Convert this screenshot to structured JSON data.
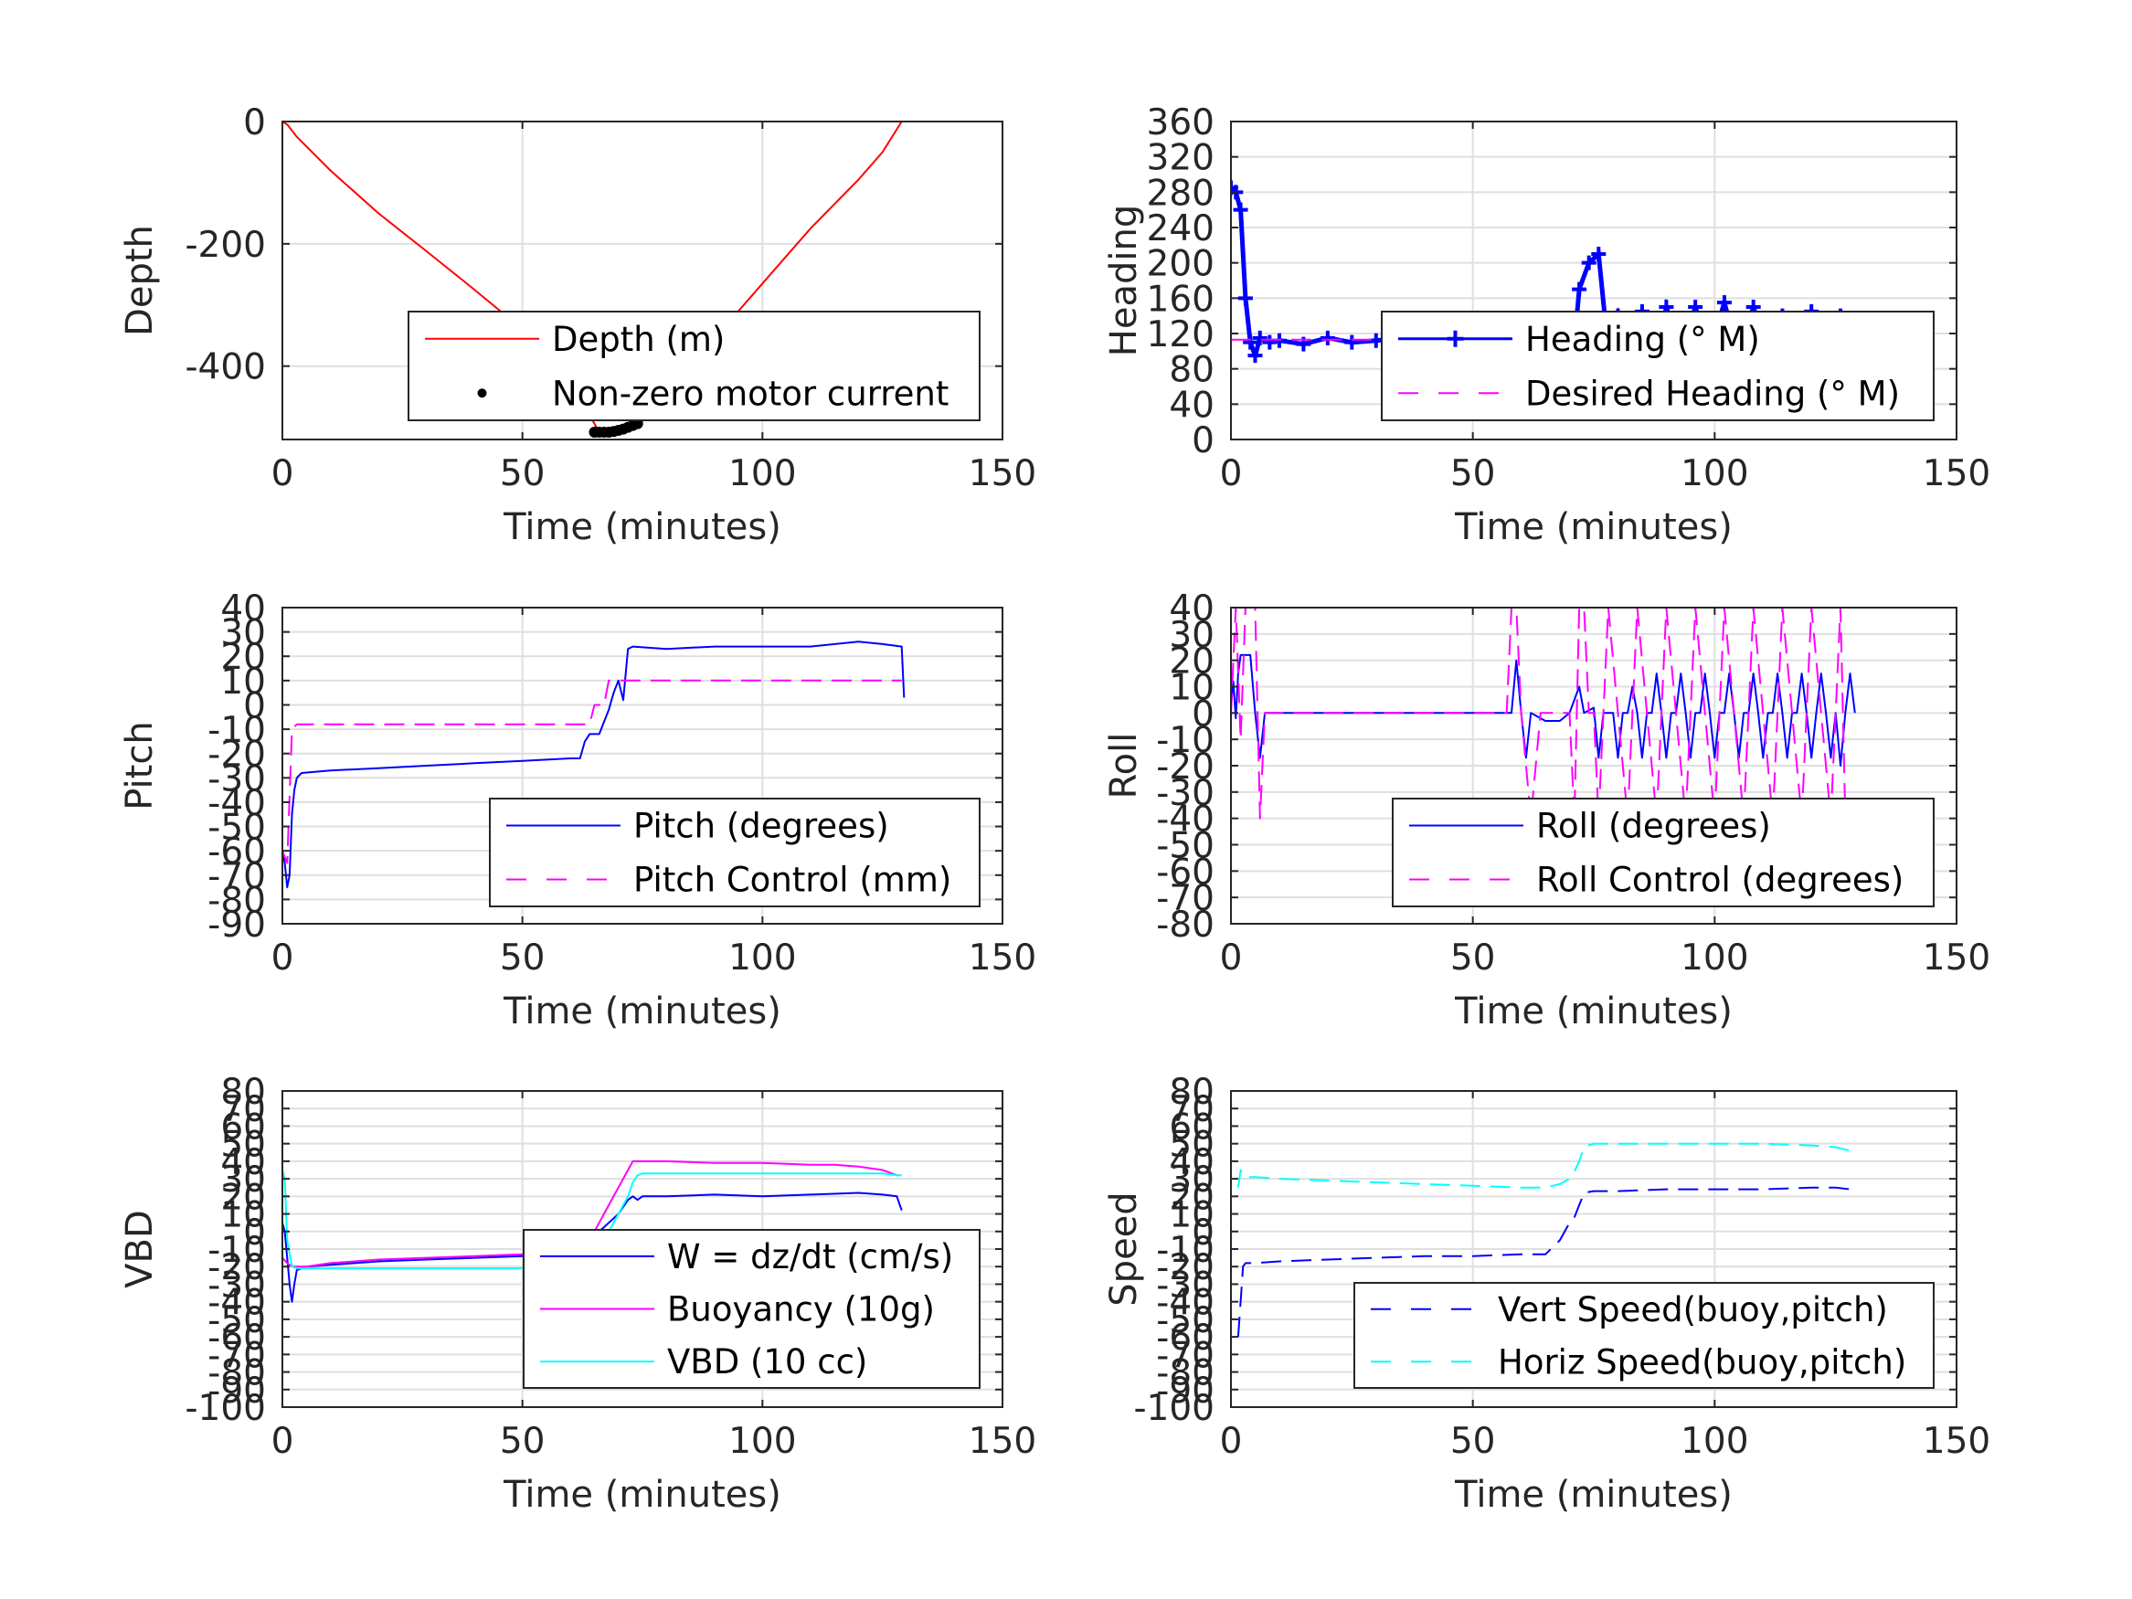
{
  "chart_data": [
    {
      "type": "line",
      "xlabel": "Time (minutes)",
      "ylabel": "Depth",
      "xlim": [
        0,
        150
      ],
      "ylim": [
        -520,
        0
      ],
      "xticks": [
        0,
        50,
        100,
        150
      ],
      "yticks": [
        0,
        -200,
        -400
      ],
      "ytick_labels": [
        "0",
        "-200",
        "-400"
      ],
      "grid": true,
      "legend": "bottom-right",
      "series": [
        {
          "name": "Depth (m)",
          "color": "#ff0000",
          "style": "solid",
          "x": [
            0,
            1,
            3,
            10,
            20,
            30,
            40,
            50,
            60,
            62,
            64,
            66,
            70,
            72,
            80,
            90,
            100,
            110,
            120,
            125,
            129
          ],
          "y": [
            0,
            -5,
            -25,
            -80,
            -150,
            -212,
            -275,
            -340,
            -410,
            -445,
            -480,
            -508,
            -508,
            -495,
            -435,
            -355,
            -265,
            -175,
            -95,
            -50,
            0
          ]
        },
        {
          "name": "Non-zero motor current",
          "color": "#000000",
          "style": "dots",
          "x": [
            65,
            66,
            67,
            68,
            69,
            70,
            71,
            72,
            73,
            74
          ],
          "y": [
            -508,
            -508,
            -508,
            -508,
            -507,
            -505,
            -503,
            -500,
            -497,
            -494
          ]
        }
      ]
    },
    {
      "type": "line",
      "xlabel": "Time (minutes)",
      "ylabel": "Heading",
      "xlim": [
        0,
        150
      ],
      "ylim": [
        0,
        360
      ],
      "xticks": [
        0,
        50,
        100,
        150
      ],
      "yticks": [
        0,
        40,
        80,
        120,
        160,
        200,
        240,
        280,
        320,
        360
      ],
      "grid": true,
      "legend": "bottom-right",
      "series": [
        {
          "name": "Heading (° M)",
          "color": "#0000ff",
          "style": "plus",
          "x": [
            0,
            1,
            2,
            3,
            4,
            5,
            6,
            8,
            10,
            15,
            20,
            25,
            30,
            35,
            40,
            45,
            50,
            55,
            58,
            60,
            62,
            65,
            68,
            70,
            72,
            74,
            76,
            78,
            80,
            82,
            85,
            88,
            90,
            93,
            96,
            99,
            102,
            105,
            108,
            111,
            114,
            117,
            120,
            123,
            126,
            129
          ],
          "y": [
            285,
            280,
            260,
            160,
            110,
            95,
            115,
            110,
            112,
            108,
            115,
            110,
            112,
            115,
            110,
            113,
            112,
            118,
            120,
            95,
            130,
            100,
            125,
            45,
            170,
            200,
            210,
            100,
            140,
            95,
            145,
            95,
            150,
            100,
            150,
            100,
            155,
            95,
            150,
            100,
            140,
            100,
            145,
            95,
            140,
            125
          ]
        },
        {
          "name": "Desired Heading (° M)",
          "color": "#ff00ff",
          "style": "dashed",
          "x": [
            0,
            130
          ],
          "y": [
            113,
            113
          ]
        }
      ]
    },
    {
      "type": "line",
      "xlabel": "Time (minutes)",
      "ylabel": "Pitch",
      "xlim": [
        0,
        150
      ],
      "ylim": [
        -90,
        40
      ],
      "xticks": [
        0,
        50,
        100,
        150
      ],
      "yticks": [
        -90,
        -80,
        -70,
        -60,
        -50,
        -40,
        -30,
        -20,
        -10,
        0,
        10,
        20,
        30,
        40
      ],
      "grid": true,
      "legend": "bottom-right",
      "series": [
        {
          "name": "Pitch (degrees)",
          "color": "#0000ff",
          "style": "solid",
          "x": [
            0,
            0.5,
            1,
            1.5,
            2,
            2.5,
            3,
            4,
            10,
            20,
            30,
            40,
            50,
            60,
            62,
            63,
            64,
            66,
            68,
            69,
            70,
            71,
            72,
            73,
            80,
            90,
            100,
            110,
            120,
            125,
            129,
            129.5
          ],
          "y": [
            -60,
            -65,
            -75,
            -70,
            -45,
            -35,
            -30,
            -28,
            -27,
            -26,
            -25,
            -24,
            -23,
            -22,
            -22,
            -15,
            -12,
            -12,
            -2,
            5,
            10,
            2,
            23,
            24,
            23,
            24,
            24,
            24,
            26,
            25,
            24,
            3
          ]
        },
        {
          "name": "Pitch Control (mm)",
          "color": "#ff00ff",
          "style": "dashed",
          "x": [
            0,
            1,
            2,
            3,
            63,
            64,
            65,
            66,
            67,
            68,
            69,
            70,
            71,
            72,
            129
          ],
          "y": [
            -60,
            -65,
            -10,
            -8,
            -8,
            -8,
            0,
            0,
            0,
            10,
            10,
            10,
            10,
            10,
            10
          ]
        }
      ]
    },
    {
      "type": "line",
      "xlabel": "Time (minutes)",
      "ylabel": "Roll",
      "xlim": [
        0,
        150
      ],
      "ylim": [
        -80,
        40
      ],
      "xticks": [
        0,
        50,
        100,
        150
      ],
      "yticks": [
        -80,
        -70,
        -60,
        -50,
        -40,
        -30,
        -20,
        -10,
        0,
        10,
        20,
        30,
        40
      ],
      "grid": true,
      "legend": "bottom-right",
      "series": [
        {
          "name": "Roll (degrees)",
          "color": "#0000ff",
          "style": "solid",
          "x": [
            0,
            0.5,
            1,
            1.5,
            2,
            3,
            4,
            5,
            6,
            7,
            10,
            20,
            30,
            40,
            50,
            55,
            58,
            59,
            60,
            61,
            62,
            65,
            68,
            70,
            72,
            73,
            75,
            76,
            77,
            78,
            79,
            80,
            81,
            82,
            83,
            84,
            85,
            86,
            87,
            88,
            89,
            90,
            91,
            92,
            93,
            94,
            95,
            96,
            97,
            98,
            99,
            100,
            101,
            102,
            103,
            104,
            105,
            106,
            107,
            108,
            109,
            110,
            111,
            112,
            113,
            114,
            115,
            116,
            117,
            118,
            119,
            120,
            121,
            122,
            123,
            124,
            125,
            126,
            127,
            128,
            129
          ],
          "y": [
            2,
            12,
            -2,
            15,
            22,
            22,
            22,
            0,
            -17,
            0,
            0,
            0,
            0,
            0,
            0,
            0,
            0,
            20,
            0,
            -17,
            0,
            -3,
            -3,
            0,
            10,
            0,
            2,
            -17,
            0,
            0,
            0,
            -17,
            0,
            0,
            10,
            0,
            -17,
            0,
            0,
            15,
            0,
            -17,
            0,
            0,
            15,
            0,
            -17,
            0,
            0,
            15,
            0,
            -17,
            0,
            0,
            15,
            0,
            -17,
            0,
            0,
            15,
            0,
            -17,
            0,
            0,
            15,
            0,
            -17,
            0,
            0,
            15,
            0,
            -17,
            0,
            15,
            0,
            -17,
            0,
            -20,
            0,
            15,
            0
          ]
        },
        {
          "name": "Roll Control (degrees)",
          "color": "#ff00ff",
          "style": "dashed",
          "x": [
            0,
            1,
            2,
            3,
            4,
            5,
            6,
            7,
            10,
            20,
            30,
            40,
            50,
            57,
            58,
            59,
            60,
            62,
            64,
            66,
            68,
            70,
            71,
            72,
            73,
            74,
            75,
            76,
            78,
            80,
            82,
            84,
            86,
            88,
            90,
            92,
            94,
            96,
            98,
            100,
            102,
            104,
            106,
            108,
            110,
            112,
            114,
            116,
            118,
            120,
            122,
            124,
            126,
            127,
            128
          ],
          "y": [
            0,
            40,
            -10,
            40,
            40,
            40,
            -40,
            0,
            0,
            0,
            0,
            0,
            0,
            0,
            40,
            40,
            0,
            -40,
            0,
            0,
            0,
            0,
            -40,
            40,
            40,
            0,
            0,
            -40,
            40,
            0,
            -40,
            40,
            0,
            -40,
            40,
            0,
            -40,
            40,
            0,
            -40,
            40,
            0,
            -40,
            40,
            0,
            -40,
            40,
            0,
            -40,
            40,
            0,
            -40,
            40,
            -40,
            -40
          ]
        }
      ]
    },
    {
      "type": "line",
      "xlabel": "Time (minutes)",
      "ylabel": "VBD",
      "xlim": [
        0,
        150
      ],
      "ylim": [
        -100,
        80
      ],
      "xticks": [
        0,
        50,
        100,
        150
      ],
      "yticks": [
        -100,
        -90,
        -80,
        -70,
        -60,
        -50,
        -40,
        -30,
        -20,
        -10,
        0,
        10,
        20,
        30,
        40,
        50,
        60,
        70,
        80
      ],
      "grid": true,
      "legend": "bottom-right",
      "series": [
        {
          "name": "W = dz/dt (cm/s)",
          "color": "#0000ff",
          "style": "solid",
          "x": [
            0,
            0.5,
            1,
            1.5,
            2,
            2.5,
            3,
            5,
            10,
            20,
            30,
            40,
            50,
            60,
            63,
            64,
            65,
            66,
            68,
            70,
            72,
            73,
            74,
            75,
            80,
            90,
            100,
            110,
            120,
            125,
            128,
            129
          ],
          "y": [
            5,
            0,
            -15,
            -30,
            -40,
            -30,
            -22,
            -20,
            -19,
            -17,
            -16,
            -15,
            -14,
            -14,
            -15,
            -10,
            -5,
            0,
            5,
            10,
            18,
            20,
            18,
            20,
            20,
            21,
            20,
            21,
            22,
            21,
            20,
            12
          ]
        },
        {
          "name": "Buoyancy (10g)",
          "color": "#ff00ff",
          "style": "solid",
          "x": [
            0,
            1,
            2,
            3,
            5,
            10,
            20,
            30,
            40,
            50,
            60,
            62,
            64,
            66,
            68,
            70,
            72,
            73,
            74,
            80,
            90,
            100,
            110,
            115,
            120,
            125,
            128
          ],
          "y": [
            -15,
            -18,
            -20,
            -20,
            -20,
            -18,
            -16,
            -15,
            -14,
            -13,
            -13,
            -13,
            -5,
            5,
            15,
            25,
            35,
            40,
            40,
            40,
            39,
            39,
            38,
            38,
            37,
            35,
            32
          ]
        },
        {
          "name": "VBD (10 cc)",
          "color": "#00ffff",
          "style": "solid",
          "x": [
            0,
            0.5,
            1,
            2,
            3,
            4,
            5,
            10,
            20,
            30,
            40,
            50,
            60,
            65,
            66,
            67,
            68,
            70,
            72,
            73,
            74,
            75,
            80,
            90,
            100,
            110,
            120,
            125,
            128,
            129
          ],
          "y": [
            35,
            30,
            -5,
            -20,
            -21,
            -21,
            -21,
            -21,
            -21,
            -21,
            -21,
            -21,
            -21,
            -21,
            -18,
            -10,
            0,
            10,
            20,
            28,
            32,
            33,
            33,
            33,
            33,
            33,
            33,
            33,
            32,
            32
          ]
        }
      ]
    },
    {
      "type": "line",
      "xlabel": "Time (minutes)",
      "ylabel": "Speed",
      "xlim": [
        0,
        150
      ],
      "ylim": [
        -100,
        80
      ],
      "xticks": [
        0,
        50,
        100,
        150
      ],
      "yticks": [
        -100,
        -90,
        -80,
        -70,
        -60,
        -50,
        -40,
        -30,
        -20,
        -10,
        0,
        10,
        20,
        30,
        40,
        50,
        60,
        70,
        80
      ],
      "grid": true,
      "legend": "bottom-right",
      "series": [
        {
          "name": "Vert Speed(buoy,pitch)",
          "color": "#0000ff",
          "style": "dashed",
          "x": [
            1.5,
            2,
            2.5,
            3,
            5,
            10,
            20,
            30,
            40,
            50,
            60,
            63,
            65,
            68,
            70,
            71,
            72,
            73,
            75,
            80,
            90,
            100,
            110,
            120,
            125,
            128,
            129
          ],
          "y": [
            -60,
            -40,
            -20,
            -18,
            -18,
            -17,
            -16,
            -15,
            -14,
            -14,
            -13,
            -13,
            -13,
            -5,
            5,
            8,
            15,
            22,
            23,
            23,
            24,
            24,
            24,
            25,
            25,
            24,
            23
          ]
        },
        {
          "name": "Horiz Speed(buoy,pitch)",
          "color": "#00ffff",
          "style": "dashed",
          "x": [
            1.5,
            2,
            2.5,
            3,
            5,
            10,
            20,
            30,
            40,
            50,
            60,
            63,
            65,
            68,
            70,
            71,
            72,
            73,
            75,
            80,
            90,
            100,
            110,
            120,
            125,
            128,
            129
          ],
          "y": [
            25,
            35,
            32,
            31,
            31,
            30,
            29,
            28,
            27,
            26,
            25,
            25,
            25,
            27,
            30,
            34,
            40,
            48,
            50,
            50,
            50,
            50,
            50,
            49,
            48,
            46,
            45
          ]
        }
      ]
    }
  ]
}
